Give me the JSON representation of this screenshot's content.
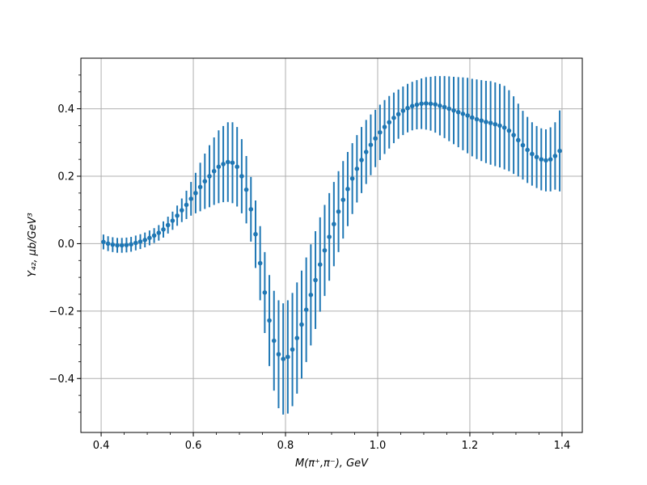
{
  "chart_data": {
    "type": "scatter",
    "xlabel": "M(π⁺,π⁻), GeV",
    "ylabel": "Y₄₂, μb/GeV³",
    "xlim": [
      0.356,
      1.444
    ],
    "ylim": [
      -0.56,
      0.55
    ],
    "x_ticks": [
      0.4,
      0.6,
      0.8,
      1.0,
      1.2,
      1.4
    ],
    "x_tick_labels": [
      "0.4",
      "0.6",
      "0.8",
      "1.0",
      "1.2",
      "1.4"
    ],
    "y_ticks": [
      -0.4,
      -0.2,
      0.0,
      0.2,
      0.4
    ],
    "y_tick_labels": [
      "−0.4",
      "−0.2",
      "0.0",
      "0.2",
      "0.4"
    ],
    "grid": true,
    "marker_color": "#1f77b4",
    "series": [
      {
        "x": [
          0.405,
          0.415,
          0.425,
          0.435,
          0.445,
          0.455,
          0.465,
          0.475,
          0.485,
          0.495,
          0.505,
          0.515,
          0.525,
          0.535,
          0.545,
          0.555,
          0.565,
          0.575,
          0.585,
          0.595,
          0.605,
          0.615,
          0.625,
          0.635,
          0.645,
          0.655,
          0.665,
          0.675,
          0.685,
          0.695,
          0.705,
          0.715,
          0.725,
          0.735,
          0.745,
          0.755,
          0.765,
          0.775,
          0.785,
          0.795,
          0.805,
          0.815,
          0.825,
          0.835,
          0.845,
          0.855,
          0.865,
          0.875,
          0.885,
          0.895,
          0.905,
          0.915,
          0.925,
          0.935,
          0.945,
          0.955,
          0.965,
          0.975,
          0.985,
          0.995,
          1.005,
          1.015,
          1.025,
          1.035,
          1.045,
          1.055,
          1.065,
          1.075,
          1.085,
          1.095,
          1.105,
          1.115,
          1.125,
          1.135,
          1.145,
          1.155,
          1.165,
          1.175,
          1.185,
          1.195,
          1.205,
          1.215,
          1.225,
          1.235,
          1.245,
          1.255,
          1.265,
          1.275,
          1.285,
          1.295,
          1.305,
          1.315,
          1.325,
          1.335,
          1.345,
          1.355,
          1.365,
          1.375,
          1.385,
          1.395
        ],
        "y": [
          0.005,
          0.0,
          -0.003,
          -0.005,
          -0.005,
          -0.004,
          -0.002,
          0.002,
          0.006,
          0.011,
          0.017,
          0.024,
          0.032,
          0.042,
          0.055,
          0.068,
          0.083,
          0.099,
          0.115,
          0.133,
          0.15,
          0.168,
          0.185,
          0.2,
          0.215,
          0.228,
          0.236,
          0.242,
          0.24,
          0.228,
          0.2,
          0.16,
          0.102,
          0.028,
          -0.058,
          -0.145,
          -0.228,
          -0.288,
          -0.328,
          -0.342,
          -0.336,
          -0.314,
          -0.28,
          -0.24,
          -0.196,
          -0.152,
          -0.108,
          -0.062,
          -0.02,
          0.02,
          0.058,
          0.095,
          0.13,
          0.162,
          0.193,
          0.222,
          0.248,
          0.272,
          0.293,
          0.312,
          0.33,
          0.346,
          0.36,
          0.373,
          0.384,
          0.394,
          0.402,
          0.408,
          0.412,
          0.415,
          0.416,
          0.415,
          0.413,
          0.409,
          0.405,
          0.4,
          0.395,
          0.39,
          0.385,
          0.38,
          0.374,
          0.369,
          0.365,
          0.361,
          0.358,
          0.354,
          0.35,
          0.344,
          0.335,
          0.322,
          0.307,
          0.292,
          0.278,
          0.266,
          0.257,
          0.25,
          0.247,
          0.25,
          0.26,
          0.275
        ],
        "yerr": [
          0.022,
          0.022,
          0.022,
          0.022,
          0.022,
          0.022,
          0.022,
          0.022,
          0.022,
          0.022,
          0.022,
          0.022,
          0.023,
          0.024,
          0.025,
          0.027,
          0.03,
          0.035,
          0.042,
          0.05,
          0.06,
          0.072,
          0.082,
          0.092,
          0.1,
          0.108,
          0.113,
          0.118,
          0.12,
          0.118,
          0.11,
          0.1,
          0.096,
          0.1,
          0.11,
          0.12,
          0.135,
          0.148,
          0.16,
          0.165,
          0.168,
          0.168,
          0.165,
          0.16,
          0.155,
          0.15,
          0.145,
          0.14,
          0.135,
          0.13,
          0.125,
          0.12,
          0.115,
          0.11,
          0.105,
          0.1,
          0.098,
          0.095,
          0.09,
          0.085,
          0.082,
          0.08,
          0.078,
          0.075,
          0.073,
          0.072,
          0.072,
          0.072,
          0.073,
          0.075,
          0.078,
          0.08,
          0.084,
          0.088,
          0.092,
          0.096,
          0.1,
          0.104,
          0.108,
          0.112,
          0.115,
          0.118,
          0.12,
          0.122,
          0.124,
          0.124,
          0.124,
          0.124,
          0.12,
          0.115,
          0.108,
          0.102,
          0.098,
          0.094,
          0.092,
          0.092,
          0.092,
          0.095,
          0.1,
          0.12
        ]
      }
    ]
  }
}
